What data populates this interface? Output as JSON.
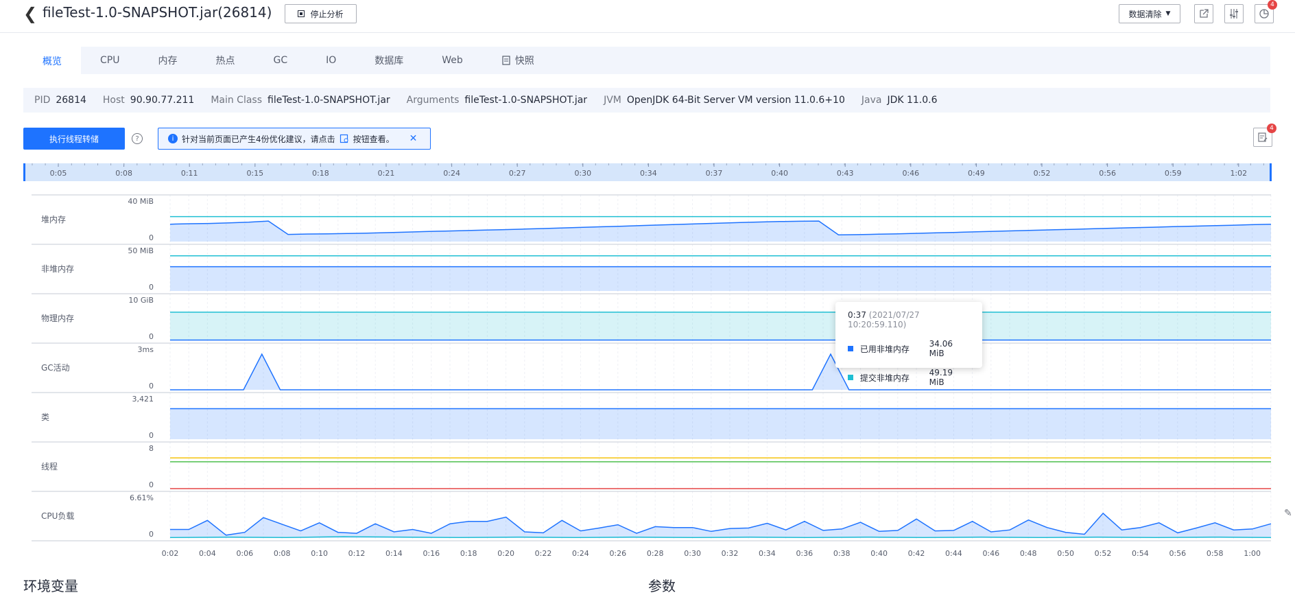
{
  "header": {
    "title": "fileTest-1.0-SNAPSHOT.jar(26814)",
    "stop_label": "停止分析",
    "clear_label": "数据清除",
    "badge_count": "4"
  },
  "tabs": [
    {
      "label": "概览",
      "active": true
    },
    {
      "label": "CPU"
    },
    {
      "label": "内存"
    },
    {
      "label": "热点"
    },
    {
      "label": "GC"
    },
    {
      "label": "IO"
    },
    {
      "label": "数据库"
    },
    {
      "label": "Web"
    },
    {
      "label": "快照"
    }
  ],
  "info": {
    "pid_key": "PID",
    "pid": "26814",
    "host_key": "Host",
    "host": "90.90.77.211",
    "main_key": "Main Class",
    "main": "fileTest-1.0-SNAPSHOT.jar",
    "args_key": "Arguments",
    "args": "fileTest-1.0-SNAPSHOT.jar",
    "jvm_key": "JVM",
    "jvm": "OpenJDK 64-Bit Server VM version 11.0.6+10",
    "java_key": "Java",
    "java": "JDK 11.0.6"
  },
  "actions": {
    "dump_label": "执行线程转储",
    "help": "?",
    "tip_text": "针对当前页面已产生4份优化建议，请点击",
    "tip_link": "按钮查看。",
    "sug_badge": "4"
  },
  "timeline_ticks": [
    "0:05",
    "0:08",
    "0:11",
    "0:15",
    "0:18",
    "0:21",
    "0:24",
    "0:27",
    "0:30",
    "0:34",
    "0:37",
    "0:40",
    "0:43",
    "0:46",
    "0:49",
    "0:52",
    "0:56",
    "0:59",
    "1:02"
  ],
  "colors": {
    "accent": "#1e73ff",
    "cyan": "#1fbfd3",
    "yellow": "#f5c30d",
    "green": "#4cbf4c",
    "red": "#e54545"
  },
  "chart_data": {
    "type": "line",
    "x_ticks": [
      "0:02",
      "0:04",
      "0:06",
      "0:08",
      "0:10",
      "0:12",
      "0:14",
      "0:16",
      "0:18",
      "0:20",
      "0:22",
      "0:24",
      "0:26",
      "0:28",
      "0:30",
      "0:32",
      "0:34",
      "0:36",
      "0:38",
      "0:40",
      "0:42",
      "0:44",
      "0:46",
      "0:48",
      "0:50",
      "0:52",
      "0:54",
      "0:56",
      "0:58",
      "1:00"
    ],
    "panels": [
      {
        "label": "堆内存",
        "ymax": "40 MiB",
        "ymin": "0",
        "max": 40,
        "series": [
          {
            "color": "#1fbfd3",
            "values": [
              28,
              28
            ]
          },
          {
            "color": "#1e73ff",
            "fill": true,
            "values": [
              19.5,
              20,
              20.3,
              21,
              21.7,
              23,
              8,
              8.5,
              8.7,
              9,
              9.4,
              10,
              10.6,
              11.2,
              11.8,
              12.3,
              12.9,
              13.4,
              14,
              14.6,
              15.3,
              15.9,
              16.6,
              17.2,
              18,
              18.6,
              19.3,
              20,
              20.7,
              21.3,
              21.9,
              22.5,
              22.8,
              23,
              7.5,
              7.8,
              8.2,
              8.7,
              9.2,
              9.8,
              10.3,
              10.9,
              11.5,
              12.1,
              12.7,
              13.2,
              13.8,
              14.4,
              15,
              15.6,
              16.1,
              16.7,
              17.2,
              17.8,
              18.3,
              18.9,
              19.5
            ]
          }
        ]
      },
      {
        "label": "非堆内存",
        "ymax": "50 MiB",
        "ymin": "0",
        "max": 50,
        "series": [
          {
            "color": "#1fbfd3",
            "values": [
              49.19,
              49.19
            ]
          },
          {
            "color": "#1e73ff",
            "fill": true,
            "values": [
              34.06,
              34.06
            ]
          }
        ]
      },
      {
        "label": "物理内存",
        "ymax": "10 GiB",
        "ymin": "0",
        "max": 10,
        "series": [
          {
            "color": "#1fbfd3",
            "fill": true,
            "values": [
              7.9,
              7.9
            ]
          },
          {
            "color": "#1e73ff",
            "values": [
              0.1,
              0.1
            ]
          }
        ]
      },
      {
        "label": "GC活动",
        "ymax": "3ms",
        "ymin": "0",
        "max": 3,
        "series": [
          {
            "color": "#1e73ff",
            "fill": true,
            "values": [
              0,
              0,
              0,
              0,
              0,
              3,
              0,
              0,
              0,
              0,
              0,
              0,
              0,
              0,
              0,
              0,
              0,
              0,
              0,
              0,
              0,
              0,
              0,
              0,
              0,
              0,
              0,
              0,
              0,
              0,
              0,
              0,
              0,
              0,
              0,
              0,
              3,
              0,
              0,
              0,
              0,
              0,
              0,
              0,
              0,
              0,
              0,
              0,
              0,
              0,
              0,
              0,
              0,
              0,
              0,
              0,
              0,
              0,
              0,
              0,
              0
            ]
          }
        ]
      },
      {
        "label": "类",
        "ymax": "3,421",
        "ymin": "0",
        "max": 4000,
        "series": [
          {
            "color": "#1e73ff",
            "fill": true,
            "values": [
              3421,
              3421
            ]
          }
        ]
      },
      {
        "label": "线程",
        "ymax": "8",
        "ymin": "0",
        "max": 9.3,
        "series": [
          {
            "color": "#f5c30d",
            "values": [
              8,
              8
            ]
          },
          {
            "color": "#4cbf4c",
            "values": [
              7,
              7
            ]
          },
          {
            "color": "#e54545",
            "values": [
              0,
              0
            ]
          }
        ]
      },
      {
        "label": "CPU负载",
        "ymax": "6.61%",
        "ymin": "0",
        "max": 7.5,
        "series": [
          {
            "color": "#1e73ff",
            "fill": true,
            "values": [
              1.8,
              1.8,
              3.7,
              0.6,
              1.2,
              4.3,
              2.9,
              1.5,
              3.2,
              1.2,
              1,
              3,
              1.3,
              1.8,
              1,
              3,
              3.5,
              3.5,
              4.4,
              1.3,
              1.1,
              3.7,
              1.5,
              2.1,
              2.8,
              1,
              2.4,
              2.2,
              2.2,
              1.4,
              2,
              2.1,
              3.1,
              1.7,
              3.5,
              1.6,
              1.9,
              3.3,
              1.4,
              1.6,
              4,
              1.5,
              1.6,
              3.5,
              1.3,
              1.7,
              3.8,
              2.2,
              1.2,
              0.8,
              5.2,
              1.7,
              2.2,
              3.2,
              1.1,
              2.1,
              3.2,
              1.7,
              1.9,
              3
            ]
          },
          {
            "color": "#1fbfd3",
            "values": [
              0.1,
              0.2,
              0.1,
              0.3,
              0.2,
              0.1,
              0.2,
              0.1,
              0.2,
              0.1,
              0.2,
              0.1,
              0.2,
              0.1,
              0.2,
              0.1,
              0.2,
              0.1,
              0.2,
              0.1
            ]
          }
        ]
      }
    ]
  },
  "tooltip": {
    "time": "0:37",
    "stamp": "(2021/07/27 10:20:59.110)",
    "rows": [
      {
        "name": "已用非堆内存",
        "value": "34.06 MiB",
        "color": "#1e73ff"
      },
      {
        "name": "提交非堆内存",
        "value": "49.19 MiB",
        "color": "#1fbfd3"
      }
    ]
  },
  "sections": {
    "env": "环境变量",
    "args": "参数"
  }
}
